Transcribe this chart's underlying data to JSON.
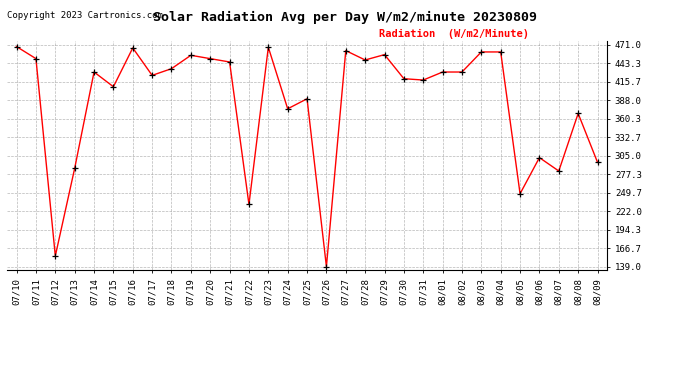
{
  "title": "Solar Radiation Avg per Day W/m2/minute 20230809",
  "copyright": "Copyright 2023 Cartronics.com",
  "legend_label": "Radiation  (W/m2/Minute)",
  "dates": [
    "07/10",
    "07/11",
    "07/12",
    "07/13",
    "07/14",
    "07/15",
    "07/16",
    "07/17",
    "07/18",
    "07/19",
    "07/20",
    "07/21",
    "07/22",
    "07/23",
    "07/24",
    "07/25",
    "07/26",
    "07/27",
    "07/28",
    "07/29",
    "07/30",
    "07/31",
    "08/01",
    "08/02",
    "08/03",
    "08/04",
    "08/05",
    "08/06",
    "08/07",
    "08/08",
    "08/09"
  ],
  "values": [
    468,
    450,
    155,
    286,
    430,
    408,
    466,
    425,
    435,
    455,
    450,
    445,
    232,
    467,
    375,
    390,
    139,
    462,
    448,
    456,
    420,
    418,
    430,
    430,
    460,
    460,
    248,
    302,
    282,
    368,
    295
  ],
  "line_color": "#ff0000",
  "marker_color": "#000000",
  "bg_color": "#ffffff",
  "grid_color": "#999999",
  "title_fontsize": 9.5,
  "legend_fontsize": 7.5,
  "copyright_fontsize": 6.5,
  "xtick_fontsize": 6.5,
  "ytick_fontsize": 6.5,
  "yticks": [
    139.0,
    166.7,
    194.3,
    222.0,
    249.7,
    277.3,
    305.0,
    332.7,
    360.3,
    388.0,
    415.7,
    443.3,
    471.0
  ],
  "ymin": 134.0,
  "ymax": 476.0
}
